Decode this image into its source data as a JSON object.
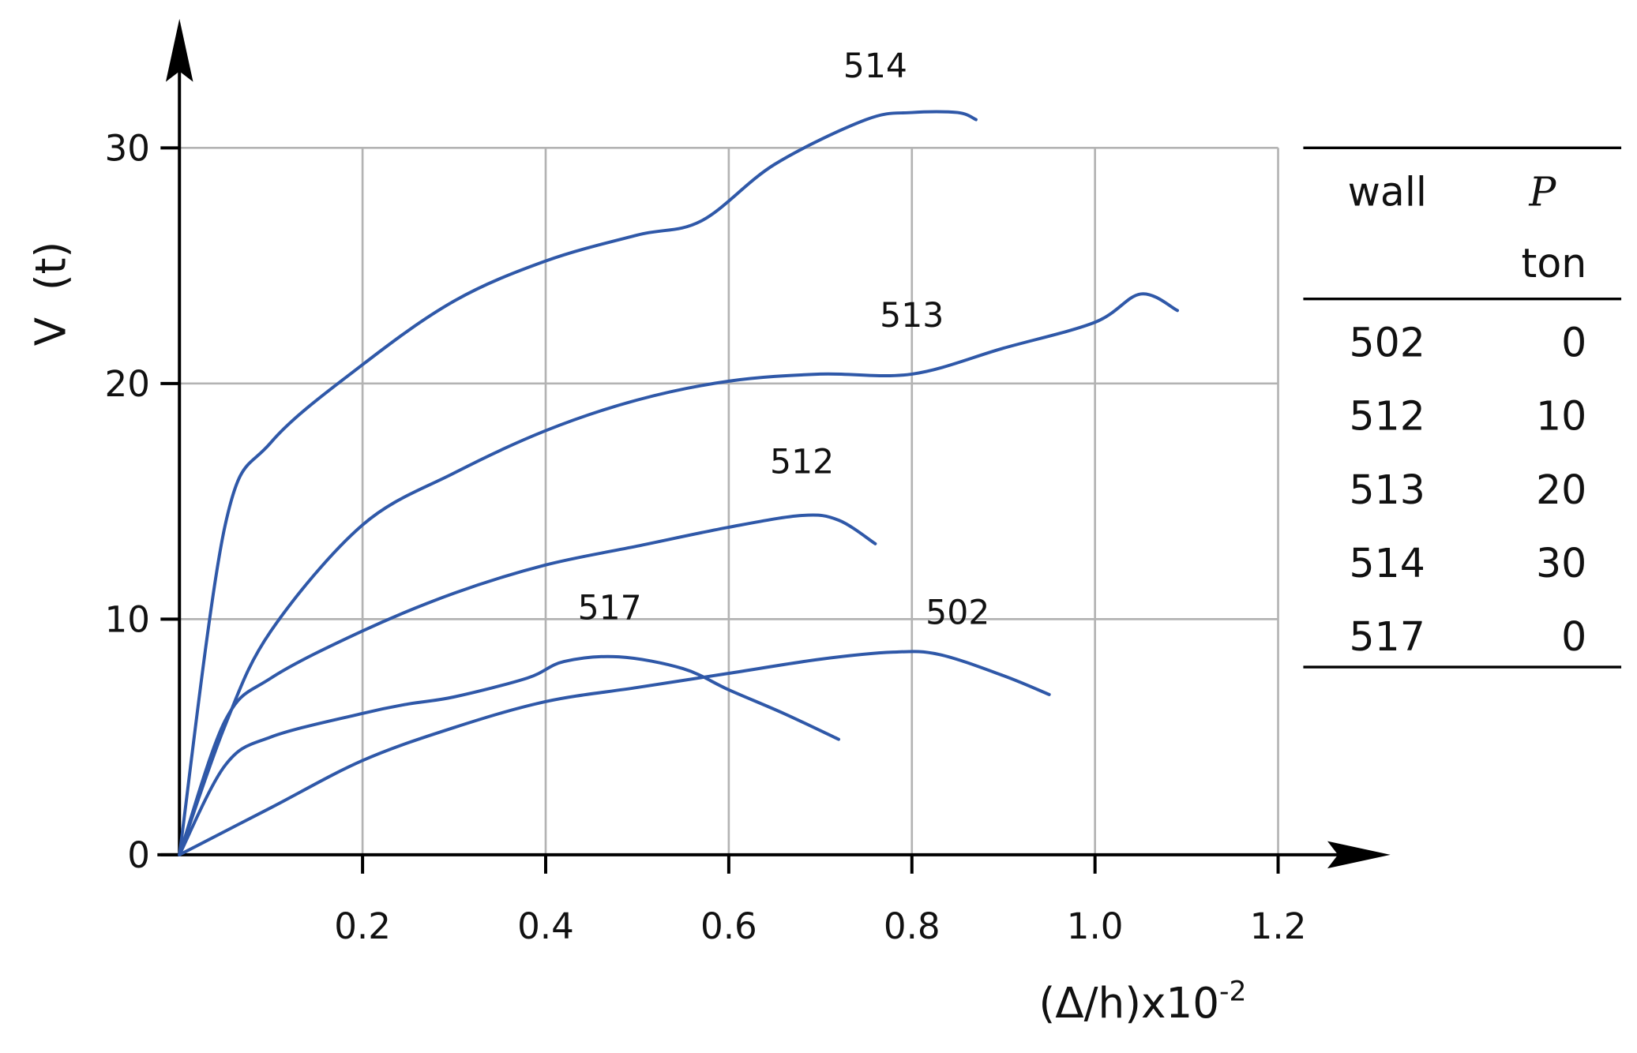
{
  "chart_data": {
    "type": "line",
    "title": "",
    "xlabel": "(Δ/h)x10",
    "xlabel_exponent": "-2",
    "ylabel": "V  (t)",
    "xlim": [
      0,
      1.2
    ],
    "ylim": [
      0,
      30
    ],
    "x_ticks": [
      "0.2",
      "0.4",
      "0.6",
      "0.8",
      "1.0",
      "1.2"
    ],
    "y_ticks": [
      "0",
      "10",
      "20",
      "30"
    ],
    "grid": true,
    "series": [
      {
        "name": "514",
        "x": [
          0,
          0.05,
          0.1,
          0.2,
          0.3,
          0.4,
          0.5,
          0.57,
          0.65,
          0.75,
          0.8,
          0.85,
          0.87
        ],
        "y": [
          0,
          14,
          17.5,
          20.8,
          23.5,
          25.2,
          26.3,
          26.9,
          29.3,
          31.2,
          31.5,
          31.5,
          31.2
        ]
      },
      {
        "name": "513",
        "x": [
          0,
          0.05,
          0.1,
          0.2,
          0.3,
          0.4,
          0.5,
          0.6,
          0.7,
          0.8,
          0.9,
          1.0,
          1.05,
          1.09
        ],
        "y": [
          0,
          5.5,
          9.5,
          14,
          16.2,
          18,
          19.3,
          20.1,
          20.4,
          20.4,
          21.5,
          22.6,
          23.8,
          23.1
        ]
      },
      {
        "name": "512",
        "x": [
          0,
          0.05,
          0.1,
          0.2,
          0.3,
          0.4,
          0.5,
          0.6,
          0.68,
          0.72,
          0.76
        ],
        "y": [
          0,
          5.7,
          7.5,
          9.5,
          11.1,
          12.3,
          13.1,
          13.9,
          14.4,
          14.2,
          13.2
        ]
      },
      {
        "name": "517",
        "x": [
          0,
          0.05,
          0.1,
          0.2,
          0.25,
          0.3,
          0.38,
          0.42,
          0.48,
          0.55,
          0.6,
          0.66,
          0.72
        ],
        "y": [
          0,
          3.8,
          5.0,
          6.0,
          6.4,
          6.7,
          7.5,
          8.2,
          8.4,
          7.9,
          7.0,
          6.0,
          4.9
        ]
      },
      {
        "name": "502",
        "x": [
          0,
          0.1,
          0.2,
          0.3,
          0.4,
          0.5,
          0.6,
          0.7,
          0.78,
          0.83,
          0.9,
          0.95
        ],
        "y": [
          0,
          2.0,
          4.0,
          5.4,
          6.5,
          7.1,
          7.7,
          8.3,
          8.6,
          8.5,
          7.6,
          6.8
        ]
      }
    ],
    "annotations": [
      {
        "text": "514",
        "x": 0.76,
        "y": 33.0
      },
      {
        "text": "513",
        "x": 0.8,
        "y": 22.4
      },
      {
        "text": "512",
        "x": 0.68,
        "y": 16.2
      },
      {
        "text": "517",
        "x": 0.47,
        "y": 10.0
      },
      {
        "text": "502",
        "x": 0.85,
        "y": 9.8
      }
    ],
    "legend_table": {
      "headers": [
        "wall",
        "P"
      ],
      "subheader": [
        "",
        "ton"
      ],
      "rows": [
        [
          "502",
          "0"
        ],
        [
          "512",
          "10"
        ],
        [
          "513",
          "20"
        ],
        [
          "514",
          "30"
        ],
        [
          "517",
          "0"
        ]
      ]
    },
    "colors": {
      "curve": "#2f58a8",
      "grid": "#b3b3b3",
      "axis": "#000000"
    }
  }
}
